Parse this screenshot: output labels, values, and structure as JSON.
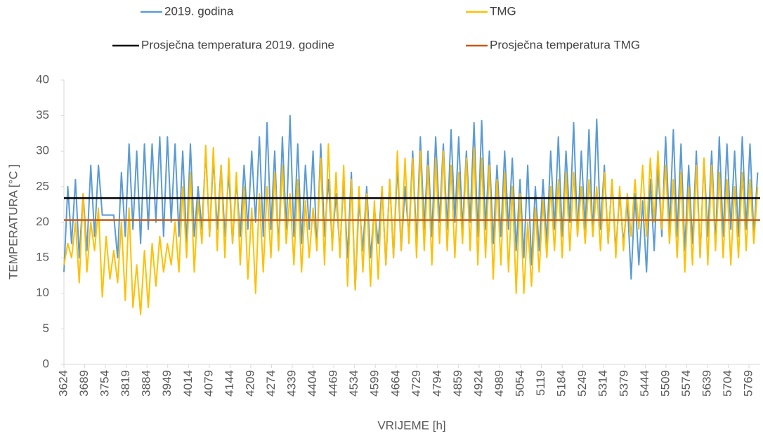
{
  "chart_data": {
    "type": "line",
    "y_label": "TEMPERATURA [°C ]",
    "x_label": "VRIJEME [h]",
    "xlim": [
      3624,
      5804
    ],
    "xticks": [
      3624,
      3689,
      3754,
      3819,
      3884,
      3949,
      4014,
      4079,
      4144,
      4209,
      4274,
      4339,
      4404,
      4469,
      4534,
      4599,
      4664,
      4729,
      4794,
      4859,
      4924,
      4989,
      5054,
      5119,
      5184,
      5249,
      5314,
      5379,
      5444,
      5509,
      5574,
      5639,
      5704,
      5769
    ],
    "ylim": [
      0,
      40
    ],
    "yticks": [
      0,
      5,
      10,
      15,
      20,
      25,
      30,
      35,
      40
    ],
    "grid": false,
    "x": [
      3624,
      3636,
      3648,
      3660,
      3672,
      3684,
      3696,
      3708,
      3720,
      3732,
      3744,
      3756,
      3768,
      3780,
      3792,
      3804,
      3816,
      3828,
      3840,
      3852,
      3864,
      3876,
      3888,
      3900,
      3912,
      3924,
      3936,
      3948,
      3960,
      3972,
      3984,
      3996,
      4008,
      4020,
      4032,
      4044,
      4056,
      4068,
      4080,
      4092,
      4104,
      4116,
      4128,
      4140,
      4152,
      4164,
      4176,
      4188,
      4200,
      4212,
      4224,
      4236,
      4248,
      4260,
      4272,
      4284,
      4296,
      4308,
      4320,
      4332,
      4344,
      4356,
      4368,
      4380,
      4392,
      4404,
      4416,
      4428,
      4440,
      4452,
      4464,
      4476,
      4488,
      4500,
      4512,
      4524,
      4536,
      4548,
      4560,
      4572,
      4584,
      4596,
      4608,
      4620,
      4632,
      4644,
      4656,
      4668,
      4680,
      4692,
      4704,
      4716,
      4728,
      4740,
      4752,
      4764,
      4776,
      4788,
      4800,
      4812,
      4824,
      4836,
      4848,
      4860,
      4872,
      4884,
      4896,
      4908,
      4920,
      4932,
      4944,
      4956,
      4968,
      4980,
      4992,
      5004,
      5016,
      5028,
      5040,
      5052,
      5064,
      5076,
      5088,
      5100,
      5112,
      5124,
      5136,
      5148,
      5160,
      5172,
      5184,
      5196,
      5208,
      5220,
      5232,
      5244,
      5256,
      5268,
      5280,
      5292,
      5304,
      5316,
      5328,
      5340,
      5352,
      5364,
      5376,
      5388,
      5400,
      5412,
      5424,
      5436,
      5448,
      5460,
      5472,
      5484,
      5496,
      5508,
      5520,
      5532,
      5544,
      5556,
      5568,
      5580,
      5592,
      5604,
      5616,
      5628,
      5640,
      5652,
      5664,
      5676,
      5688,
      5700,
      5712,
      5724,
      5736,
      5748,
      5760,
      5772,
      5784,
      5796
    ],
    "series": [
      {
        "name": "2019. godina",
        "color": "#5b9bd5",
        "values": [
          13,
          25,
          17,
          26,
          15,
          24,
          16,
          28,
          18,
          28,
          21,
          21,
          21,
          21,
          15,
          27,
          18,
          31,
          19,
          30,
          17,
          31,
          19,
          31,
          20,
          32,
          18,
          32,
          20,
          31,
          18,
          30,
          17,
          31,
          18,
          25,
          19,
          30,
          18,
          29,
          19,
          28,
          18,
          27,
          17,
          26,
          18,
          28,
          19,
          30,
          20,
          32,
          18,
          34,
          19,
          30,
          16,
          32,
          19,
          35,
          18,
          31,
          17,
          28,
          19,
          30,
          16,
          31,
          18,
          26,
          17,
          24,
          16,
          26,
          15,
          27,
          10.5,
          23,
          16,
          25,
          15,
          22,
          17,
          25,
          14,
          26,
          15,
          28,
          16,
          25,
          18,
          30,
          17,
          32,
          19,
          30,
          18,
          32,
          20,
          31,
          19,
          33,
          20,
          32,
          19,
          30,
          20,
          34,
          18,
          34.3,
          19,
          30,
          17,
          28,
          18,
          30,
          19,
          29,
          16,
          26,
          15,
          28,
          14,
          25,
          16,
          26,
          17,
          30,
          19,
          32,
          18,
          30,
          20,
          34,
          18,
          30,
          19,
          33,
          18,
          34.5,
          19,
          28,
          17,
          26,
          16,
          24,
          17,
          23,
          12,
          24,
          14,
          23,
          13,
          26,
          16,
          28,
          18,
          32,
          19,
          33,
          18,
          31,
          16,
          28,
          17,
          30,
          15,
          29,
          18,
          30,
          17,
          32,
          18,
          31,
          19,
          30,
          18,
          32,
          19,
          31,
          18,
          27
        ]
      },
      {
        "name": "TMG",
        "color": "#ffc000",
        "values": [
          14,
          17,
          15,
          20,
          11.5,
          24,
          13,
          20,
          16,
          22,
          9.5,
          18,
          12,
          16,
          11.5,
          20,
          9,
          22,
          8,
          14,
          7,
          16,
          8,
          17,
          11,
          18,
          13,
          17,
          14,
          20,
          13,
          25,
          15,
          27,
          13,
          23,
          17,
          30.8,
          18,
          30.5,
          16,
          28,
          15,
          29,
          17,
          27,
          14,
          25,
          12,
          22,
          10,
          24,
          13,
          25,
          15,
          27,
          16,
          28,
          17,
          24,
          14,
          26,
          13,
          23,
          15,
          22,
          16,
          29,
          14,
          31,
          16,
          27,
          15,
          28,
          11,
          26,
          10.5,
          25,
          13,
          24,
          11,
          23,
          12,
          25,
          14,
          26,
          15,
          30,
          16,
          29,
          17,
          29,
          15,
          30,
          16,
          28,
          14,
          29,
          17,
          30,
          16,
          28,
          15,
          27,
          17,
          29,
          16,
          30.5,
          14,
          29,
          15,
          28,
          12,
          26,
          14,
          27,
          13,
          25,
          10,
          24,
          10,
          20,
          11,
          22,
          13,
          23,
          15,
          25,
          16,
          26,
          15,
          27,
          16,
          27,
          18,
          25,
          17,
          26,
          18,
          25,
          16,
          27,
          17,
          26,
          15,
          25,
          16,
          24,
          18,
          26,
          19,
          28,
          18,
          29,
          20,
          30,
          19,
          28,
          17,
          26,
          15,
          27,
          13,
          25,
          14,
          28,
          15,
          29,
          14,
          28,
          16,
          27,
          15,
          26,
          14,
          25,
          15,
          27,
          16,
          26,
          17,
          25
        ]
      },
      {
        "name": "Prosječna temperatura 2019. godine",
        "color": "#000000",
        "value": 23.4
      },
      {
        "name": "Prosječna temperatura TMG",
        "color": "#c55a11",
        "value": 20.3
      }
    ]
  }
}
